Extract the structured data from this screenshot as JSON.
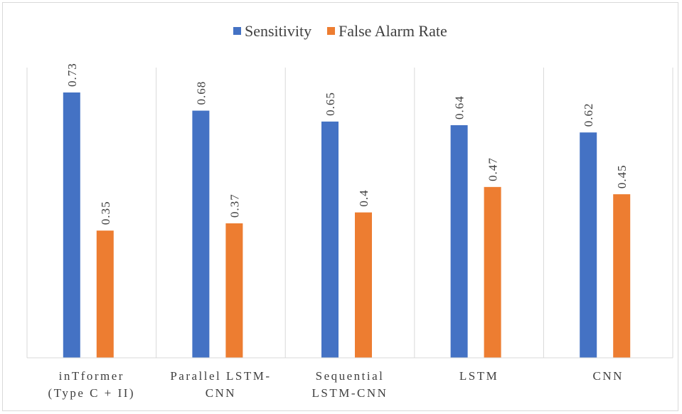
{
  "chart_data": {
    "type": "bar",
    "categories": [
      [
        "inTformer",
        "(Type C + II)"
      ],
      [
        "Parallel LSTM-",
        "CNN"
      ],
      [
        "Sequential",
        "LSTM-CNN"
      ],
      [
        "LSTM"
      ],
      [
        "CNN"
      ]
    ],
    "series": [
      {
        "name": "Sensitivity",
        "color": "#4472C4",
        "values": [
          0.73,
          0.68,
          0.65,
          0.64,
          0.62
        ],
        "labels": [
          "0.73",
          "0.68",
          "0.65",
          "0.64",
          "0.62"
        ]
      },
      {
        "name": "False Alarm Rate",
        "color": "#ED7D31",
        "values": [
          0.35,
          0.37,
          0.4,
          0.47,
          0.45
        ],
        "labels": [
          "0.35",
          "0.37",
          "0.4",
          "0.47",
          "0.45"
        ]
      }
    ],
    "ylim": [
      0,
      0.8
    ],
    "legend_position": "top-center",
    "grid": "vertical category separators"
  }
}
